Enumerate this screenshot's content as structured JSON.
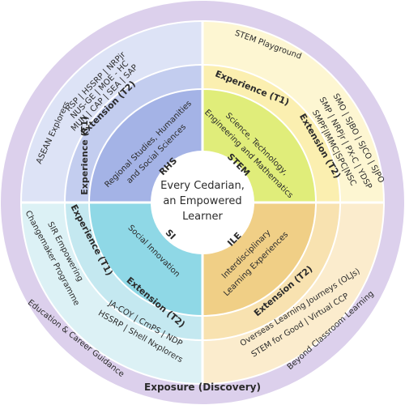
{
  "center": {
    "line1": "Every Cedarian,",
    "line2": "an Empowered",
    "line3": "Learner"
  },
  "core": {
    "rhs": {
      "code": "RHS",
      "line1": "Regional Studies, Humanities",
      "line2": "and Social Sciences"
    },
    "stem": {
      "code": "STEM",
      "line1": "Science, Technology,",
      "line2": "Engineering and Mathematics"
    },
    "ile": {
      "code": "ILE",
      "line1": "Interdisciplinary",
      "line2": "Learning Experiences"
    },
    "si": {
      "code": "SI",
      "line1": "Social Innovation"
    }
  },
  "quadrants": {
    "rhs": {
      "experience_label": "Experience (T1)",
      "experience_text": "ASEAN Explorers",
      "extension_label": "Extension (T2)",
      "extension_lines": [
        "RSP | HSSRP | NRPjr",
        "NUS-GE | MOE - HC",
        "MUN | CAP | SEA | SAP"
      ]
    },
    "stem": {
      "experience_label": "Experience (T1)",
      "experience_text": "STEM Playground",
      "extension_label": "Extension (T2)",
      "extension_lines": [
        "SMO | SJBO | SJCO | SJPO",
        "SMP | NRPjr | PX-C | YDSP",
        "SMPF|IMMC|SPC|NSC"
      ]
    },
    "si": {
      "experience_label": "Experience (T1)",
      "experience_lines": [
        "SIR Empowering",
        "Changemaker Programme"
      ],
      "extension_label": "Extension (T2)",
      "extension_lines": [
        "JA-COY | CmPS | NDP",
        "HSSRP | Shell Nxplorers"
      ]
    },
    "ile": {
      "extension_label": "Extension (T2)",
      "extension_lines": [
        "Overseas Learning Journeys (OLJs)",
        "STEM for Good | Virtual CCP"
      ]
    }
  },
  "outer_ring": {
    "title": "Exposure (Discovery)",
    "left": "Education & Career Guidance",
    "right": "Beyond Classroom Learning"
  },
  "colors": {
    "outer": "#dcd0ec",
    "rhs_light": "#dde3f6",
    "rhs_mid": "#c3cdef",
    "rhs_core": "#a4b3e6",
    "stem_light": "#fdf6d2",
    "stem_mid": "#fbefb0",
    "stem_core": "#e0ed7a",
    "si_light": "#dcf1f5",
    "si_mid": "#c4e8f0",
    "si_core": "#8fd8e6",
    "ile_light": "#fbeccd",
    "ile_mid": "#f8e2b0",
    "ile_core": "#f0cf86"
  }
}
